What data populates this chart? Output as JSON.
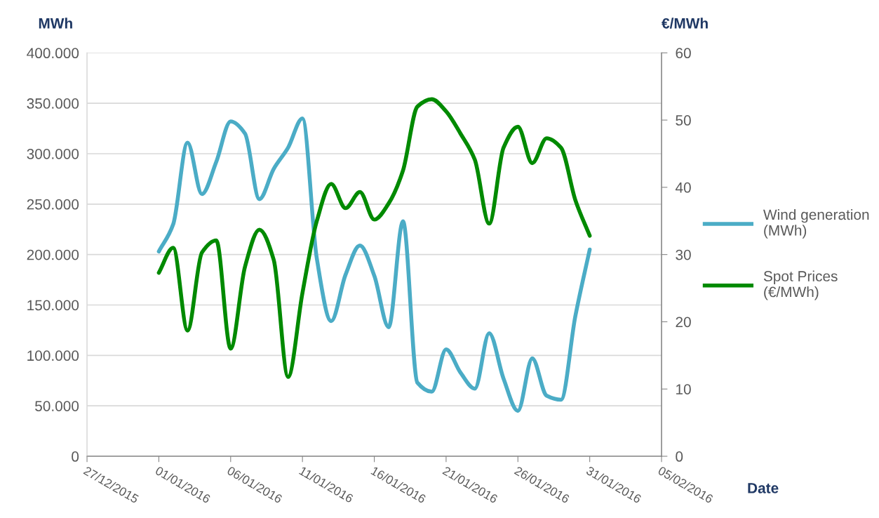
{
  "chart_data": {
    "type": "line",
    "xlabel": "Date",
    "ylabel": "MWh",
    "y2label": "€/MWh",
    "x": [
      "2016-01-01",
      "2016-01-02",
      "2016-01-03",
      "2016-01-04",
      "2016-01-05",
      "2016-01-06",
      "2016-01-07",
      "2016-01-08",
      "2016-01-09",
      "2016-01-10",
      "2016-01-11",
      "2016-01-12",
      "2016-01-13",
      "2016-01-14",
      "2016-01-15",
      "2016-01-16",
      "2016-01-17",
      "2016-01-18",
      "2016-01-19",
      "2016-01-20",
      "2016-01-21",
      "2016-01-22",
      "2016-01-23",
      "2016-01-24",
      "2016-01-25",
      "2016-01-26",
      "2016-01-27",
      "2016-01-28",
      "2016-01-29",
      "2016-01-30",
      "2016-01-31"
    ],
    "series": [
      {
        "name": "Wind generation (MWh)",
        "color": "#4bacc6",
        "values": [
          203000,
          230000,
          311000,
          260000,
          292000,
          332000,
          320000,
          255000,
          285000,
          306000,
          335000,
          196000,
          134000,
          180000,
          209000,
          179000,
          128000,
          233000,
          73000,
          64000,
          106000,
          83000,
          67000,
          122000,
          77000,
          45000,
          97000,
          60000,
          56000,
          139000,
          205000
        ]
      },
      {
        "name": "Spot Prices (€/MWh)",
        "color": "#008a00",
        "axis": "y2",
        "values": [
          27.3,
          31.0,
          18.7,
          30.3,
          32.1,
          16.0,
          28.2,
          33.7,
          29.2,
          11.8,
          24.3,
          35.0,
          40.5,
          36.9,
          39.3,
          35.2,
          37.6,
          42.5,
          52.0,
          53.1,
          51.3,
          48.0,
          44.1,
          34.6,
          45.9,
          49.0,
          43.6,
          47.3,
          45.9,
          38.1,
          32.8
        ]
      }
    ],
    "xlim": [
      "2015-12-27",
      "2016-02-05"
    ],
    "xticks": [
      {
        "value": "2015-12-27",
        "label": "27/12/2015"
      },
      {
        "value": "2016-01-01",
        "label": "01/01/2016"
      },
      {
        "value": "2016-01-06",
        "label": "06/01/2016"
      },
      {
        "value": "2016-01-11",
        "label": "11/01/2016"
      },
      {
        "value": "2016-01-16",
        "label": "16/01/2016"
      },
      {
        "value": "2016-01-21",
        "label": "21/01/2016"
      },
      {
        "value": "2016-01-26",
        "label": "26/01/2016"
      },
      {
        "value": "2016-01-31",
        "label": "31/01/2016"
      },
      {
        "value": "2016-02-05",
        "label": "05/02/2016"
      }
    ],
    "ylim": [
      0,
      400000
    ],
    "yticks": [
      0,
      {
        "value": 50000,
        "label": "50.000"
      },
      {
        "value": 100000,
        "label": "100.000"
      },
      {
        "value": 150000,
        "label": "150.000"
      },
      {
        "value": 200000,
        "label": "200.000"
      },
      {
        "value": 250000,
        "label": "250.000"
      },
      {
        "value": 300000,
        "label": "300.000"
      },
      {
        "value": 350000,
        "label": "350.000"
      },
      {
        "value": 400000,
        "label": "400.000"
      }
    ],
    "y2lim": [
      0,
      60
    ],
    "y2ticks": [
      0,
      10,
      20,
      30,
      40,
      50,
      60
    ],
    "grid": "y",
    "legend": "right",
    "marker": "none",
    "line_style": "solid"
  }
}
